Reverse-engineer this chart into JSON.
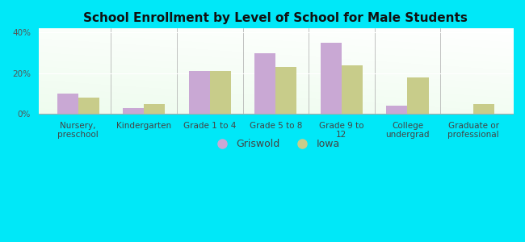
{
  "title": "School Enrollment by Level of School for Male Students",
  "categories": [
    "Nursery,\npreschool",
    "Kindergarten",
    "Grade 1 to 4",
    "Grade 5 to 8",
    "Grade 9 to\n12",
    "College\nundergrad",
    "Graduate or\nprofessional"
  ],
  "griswold": [
    10,
    3,
    21,
    30,
    35,
    4,
    0
  ],
  "iowa": [
    8,
    5,
    21,
    23,
    24,
    18,
    5
  ],
  "bar_color_griswold": "#c9a8d4",
  "bar_color_iowa": "#c8cc8a",
  "background_outer": "#00e8f8",
  "yticks": [
    0,
    20,
    40
  ],
  "ylim": [
    0,
    42
  ],
  "ylabel_labels": [
    "0%",
    "20%",
    "40%"
  ],
  "legend_griswold": "Griswold",
  "legend_iowa": "Iowa",
  "title_fontsize": 11,
  "tick_fontsize": 7.5,
  "bar_width": 0.32
}
